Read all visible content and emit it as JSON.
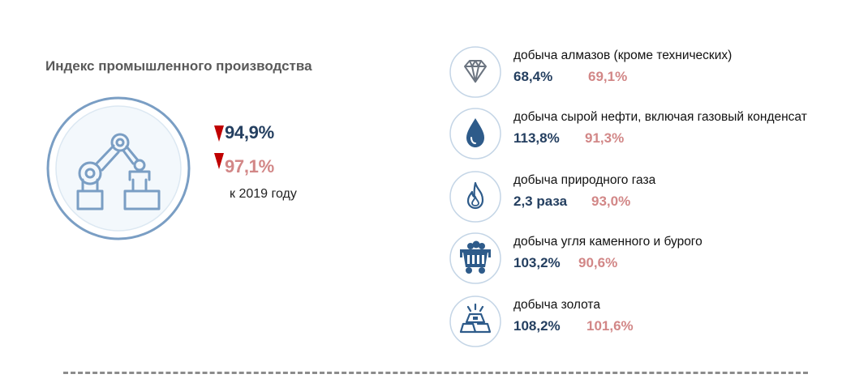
{
  "title": "Индекс промышленного производства",
  "main": {
    "value_1": "94,9%",
    "value_2": "97,1%",
    "note": "к 2019 году",
    "icon": "robot-arm-icon"
  },
  "colors": {
    "dark_value": "#243f60",
    "pink_value": "#d28787",
    "decrease_marker": "#c00000",
    "circle_stroke": "#7a9ec4",
    "icon_fill": "#2e5b8a"
  },
  "items": [
    {
      "label": "добыча алмазов (кроме технических)",
      "value_1": "68,4%",
      "value_2": "69,1%",
      "icon": "diamond-icon"
    },
    {
      "label": "добыча сырой нефти, включая газовый конденсат",
      "value_1": "113,8%",
      "value_2": "91,3%",
      "icon": "oil-drop-icon"
    },
    {
      "label": "добыча природного газа",
      "value_1": "2,3 раза",
      "value_2": "93,0%",
      "icon": "flame-icon"
    },
    {
      "label": "добыча угля каменного и бурого",
      "value_1": "103,2%",
      "value_2": "90,6%",
      "icon": "coal-cart-icon"
    },
    {
      "label": "добыча золота",
      "value_1": "108,2%",
      "value_2": "101,6%",
      "icon": "gold-bar-icon"
    }
  ]
}
